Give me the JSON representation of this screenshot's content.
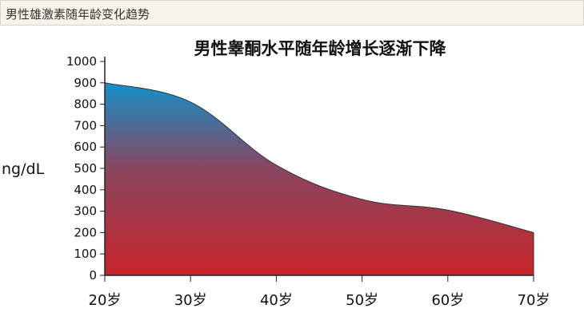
{
  "header": {
    "title": "男性雄激素随年龄变化趋势"
  },
  "chart_data": {
    "type": "area",
    "title": "男性睾酮水平随年龄增长逐渐下降",
    "xlabel": "",
    "ylabel": "ng/dL",
    "x": [
      20,
      30,
      40,
      50,
      60,
      70
    ],
    "x_tick_labels": [
      "20岁",
      "30岁",
      "40岁",
      "50岁",
      "60岁",
      "70岁"
    ],
    "values": [
      900,
      810,
      515,
      355,
      305,
      200
    ],
    "y_ticks": [
      0,
      100,
      200,
      300,
      400,
      500,
      600,
      700,
      800,
      900,
      1000
    ],
    "ylim": [
      0,
      1000
    ],
    "xlim": [
      20,
      70
    ],
    "grid": false,
    "fill_gradient": [
      "#1a8fc4",
      "#c8282a"
    ]
  }
}
